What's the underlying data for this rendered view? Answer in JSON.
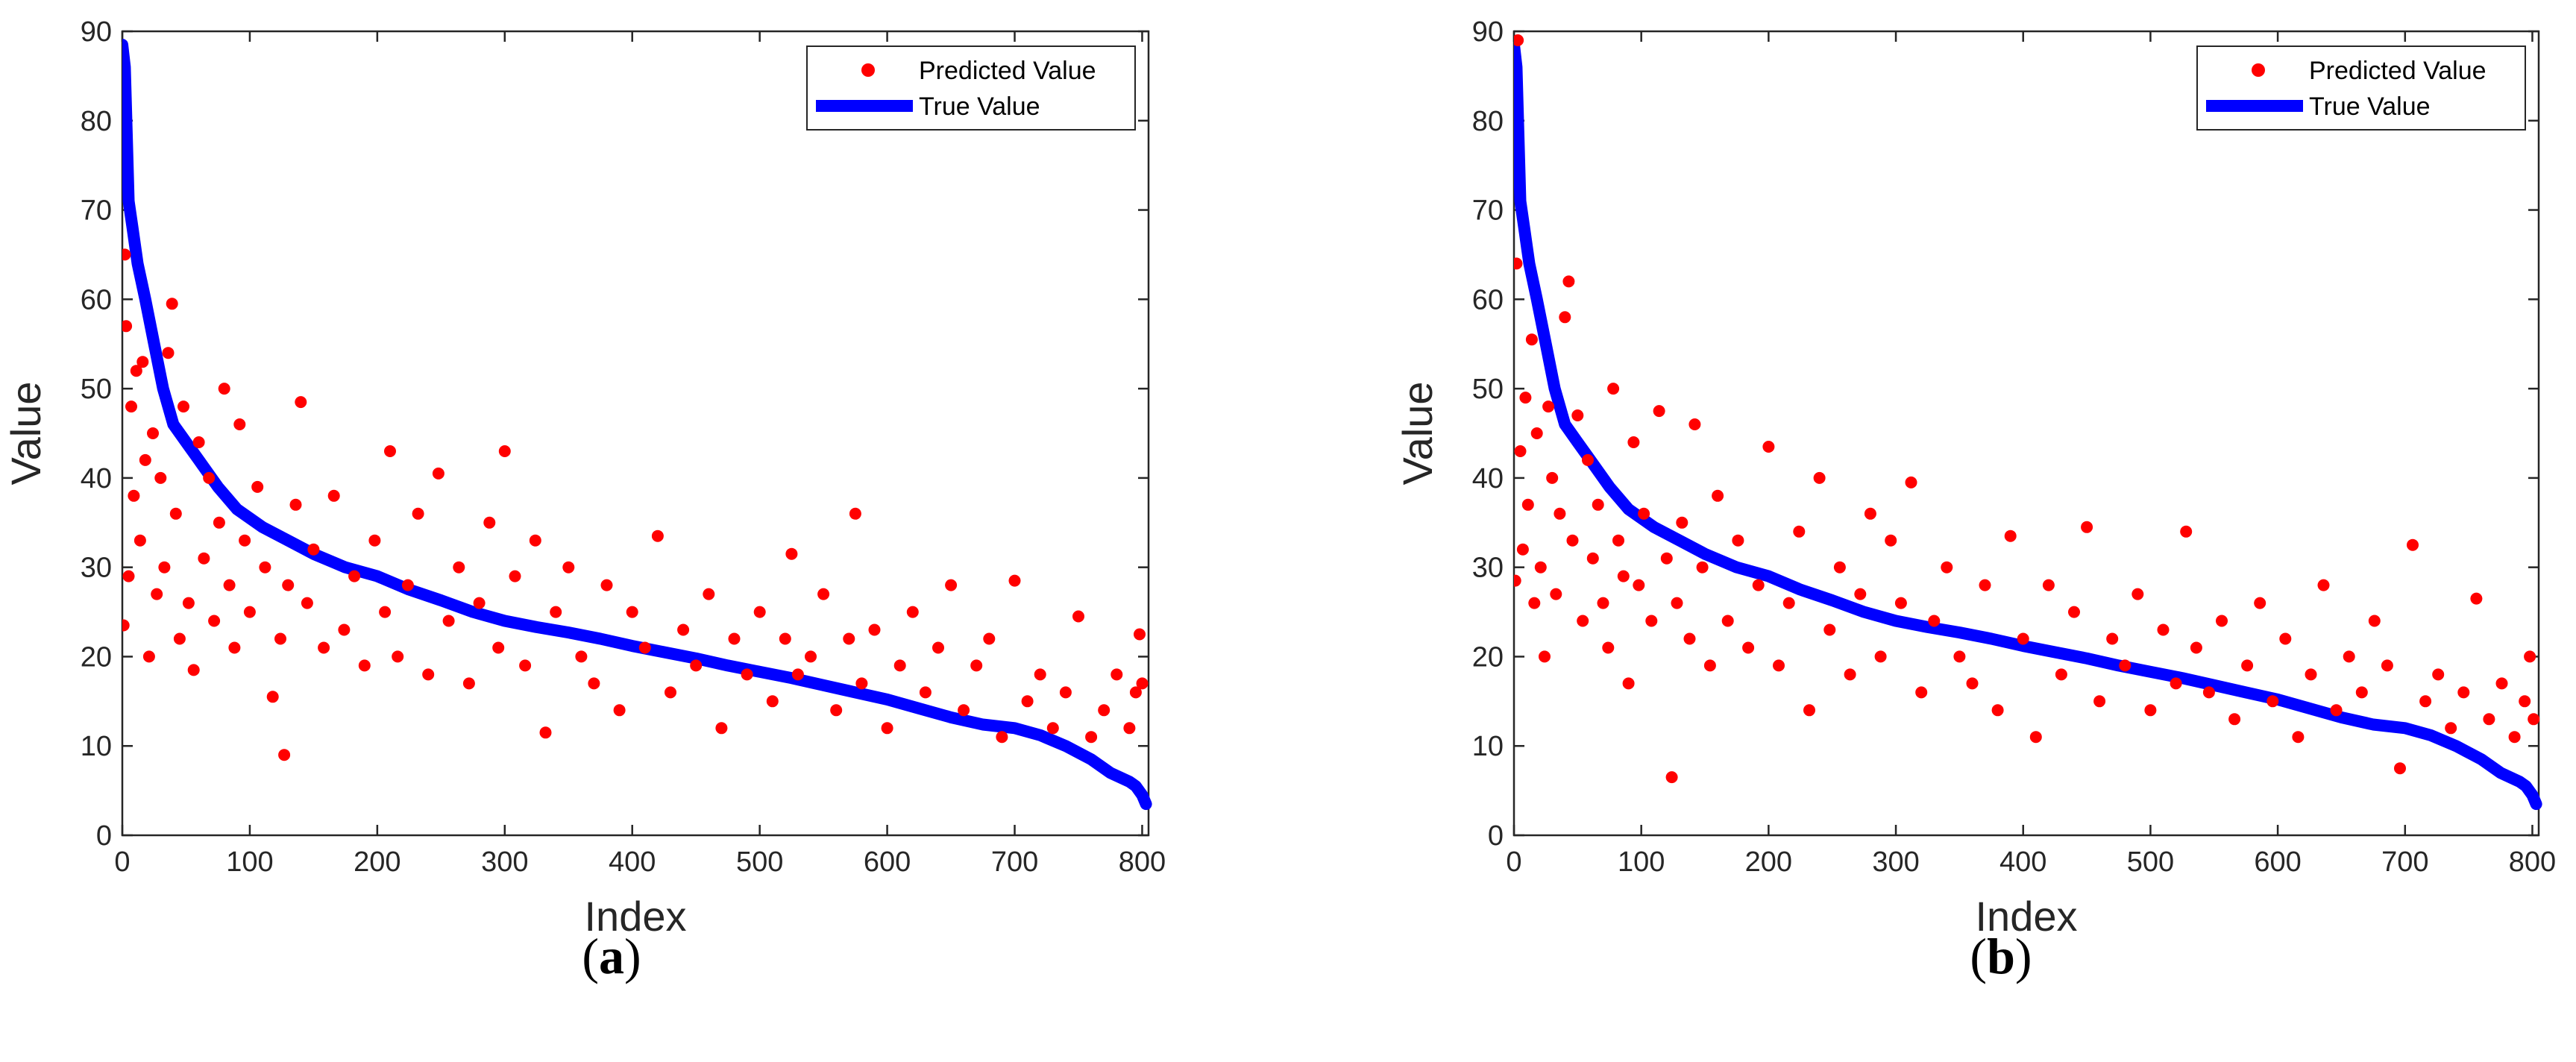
{
  "colors": {
    "predicted": "#ff0000",
    "true": "#0000ff",
    "axis": "#262626"
  },
  "chart_data": [
    {
      "type": "scatter",
      "panel_label": "a",
      "xlabel": "Index",
      "ylabel": "Value",
      "xlim": [
        0,
        805
      ],
      "ylim": [
        0,
        90
      ],
      "xticks": [
        0,
        100,
        200,
        300,
        400,
        500,
        600,
        700,
        800
      ],
      "yticks": [
        0,
        10,
        20,
        30,
        40,
        50,
        60,
        70,
        80,
        90
      ],
      "grid": false,
      "legend_position": "top-right",
      "legend": [
        "Predicted Value",
        "True Value"
      ],
      "series": [
        {
          "name": "True Value",
          "kind": "line",
          "x": [
            0,
            2,
            5,
            8,
            12,
            18,
            25,
            32,
            40,
            50,
            60,
            75,
            90,
            110,
            130,
            150,
            175,
            200,
            225,
            250,
            275,
            300,
            325,
            350,
            375,
            400,
            425,
            450,
            475,
            500,
            525,
            550,
            575,
            600,
            625,
            650,
            675,
            700,
            720,
            740,
            760,
            775,
            790,
            795,
            800,
            803
          ],
          "y": [
            88.5,
            86,
            71,
            68,
            64,
            60,
            55,
            50,
            46,
            44,
            42,
            39,
            36.5,
            34.5,
            33,
            31.5,
            30,
            29,
            27.5,
            26.3,
            25,
            24,
            23.3,
            22.7,
            22,
            21.2,
            20.5,
            19.8,
            19,
            18.3,
            17.6,
            16.8,
            16,
            15.2,
            14.2,
            13.2,
            12.4,
            12,
            11.2,
            10,
            8.5,
            7,
            6,
            5.5,
            4.5,
            3.5
          ]
        },
        {
          "name": "Predicted Value",
          "kind": "scatter",
          "x": [
            1,
            2,
            3,
            5,
            7,
            9,
            11,
            14,
            16,
            18,
            21,
            24,
            27,
            30,
            33,
            36,
            39,
            42,
            45,
            48,
            52,
            56,
            60,
            64,
            68,
            72,
            76,
            80,
            84,
            88,
            92,
            96,
            100,
            106,
            112,
            118,
            124,
            127,
            130,
            136,
            140,
            145,
            150,
            158,
            166,
            174,
            182,
            190,
            198,
            206,
            210,
            216,
            224,
            232,
            240,
            248,
            256,
            264,
            272,
            280,
            288,
            295,
            300,
            308,
            316,
            324,
            332,
            340,
            350,
            360,
            370,
            380,
            390,
            400,
            410,
            420,
            430,
            440,
            450,
            460,
            470,
            480,
            490,
            500,
            510,
            520,
            525,
            530,
            540,
            550,
            560,
            570,
            575,
            580,
            590,
            600,
            610,
            620,
            630,
            640,
            650,
            660,
            670,
            680,
            690,
            700,
            710,
            720,
            730,
            740,
            750,
            760,
            770,
            780,
            790,
            795,
            798,
            800
          ],
          "y": [
            23.5,
            65,
            57,
            29,
            48,
            38,
            52,
            33,
            53,
            42,
            20,
            45,
            27,
            40,
            30,
            54,
            59.5,
            36,
            22,
            48,
            26,
            18.5,
            44,
            31,
            40,
            24,
            35,
            50,
            28,
            21,
            46,
            33,
            25,
            39,
            30,
            15.5,
            22,
            9,
            28,
            37,
            48.5,
            26,
            32,
            21,
            38,
            23,
            29,
            19,
            33,
            25,
            43,
            20,
            28,
            36,
            18,
            40.5,
            24,
            30,
            17,
            26,
            35,
            21,
            43,
            29,
            19,
            33,
            11.5,
            25,
            30,
            20,
            17,
            28,
            14,
            25,
            21,
            33.5,
            16,
            23,
            19,
            27,
            12,
            22,
            18,
            25,
            15,
            22,
            31.5,
            18,
            20,
            27,
            14,
            22,
            36,
            17,
            23,
            12,
            19,
            25,
            16,
            21,
            28,
            14,
            19,
            22,
            11,
            28.5,
            15,
            18,
            12,
            16,
            24.5,
            11,
            14,
            18,
            12,
            16,
            22.5,
            17
          ]
        }
      ]
    },
    {
      "type": "scatter",
      "panel_label": "b",
      "xlabel": "Index",
      "ylabel": "Value",
      "xlim": [
        0,
        805
      ],
      "ylim": [
        0,
        90
      ],
      "xticks": [
        0,
        100,
        200,
        300,
        400,
        500,
        600,
        700,
        800
      ],
      "yticks": [
        0,
        10,
        20,
        30,
        40,
        50,
        60,
        70,
        80,
        90
      ],
      "grid": false,
      "legend_position": "top-right",
      "legend": [
        "Predicted Value",
        "True Value"
      ],
      "series": [
        {
          "name": "True Value",
          "kind": "line",
          "x": [
            0,
            2,
            5,
            8,
            12,
            18,
            25,
            32,
            40,
            50,
            60,
            75,
            90,
            110,
            130,
            150,
            175,
            200,
            225,
            250,
            275,
            300,
            325,
            350,
            375,
            400,
            425,
            450,
            475,
            500,
            525,
            550,
            575,
            600,
            625,
            650,
            675,
            700,
            720,
            740,
            760,
            775,
            790,
            795,
            800,
            803
          ],
          "y": [
            88.5,
            86,
            71,
            68,
            64,
            60,
            55,
            50,
            46,
            44,
            42,
            39,
            36.5,
            34.5,
            33,
            31.5,
            30,
            29,
            27.5,
            26.3,
            25,
            24,
            23.3,
            22.7,
            22,
            21.2,
            20.5,
            19.8,
            19,
            18.3,
            17.6,
            16.8,
            16,
            15.2,
            14.2,
            13.2,
            12.4,
            12,
            11.2,
            10,
            8.5,
            7,
            6,
            5.5,
            4.5,
            3.5
          ]
        },
        {
          "name": "Predicted Value",
          "kind": "scatter",
          "x": [
            1,
            2,
            3,
            5,
            7,
            9,
            11,
            14,
            16,
            18,
            21,
            24,
            27,
            30,
            33,
            36,
            40,
            43,
            46,
            50,
            54,
            58,
            62,
            66,
            70,
            74,
            78,
            82,
            86,
            90,
            94,
            98,
            102,
            108,
            114,
            120,
            124,
            128,
            132,
            138,
            142,
            148,
            154,
            160,
            168,
            176,
            184,
            192,
            200,
            208,
            216,
            224,
            232,
            240,
            248,
            256,
            264,
            272,
            280,
            288,
            296,
            304,
            312,
            320,
            330,
            340,
            350,
            360,
            370,
            380,
            390,
            400,
            410,
            420,
            430,
            440,
            450,
            460,
            470,
            480,
            490,
            500,
            510,
            520,
            528,
            536,
            546,
            556,
            566,
            576,
            586,
            596,
            606,
            616,
            626,
            636,
            646,
            656,
            666,
            676,
            686,
            696,
            706,
            716,
            726,
            736,
            746,
            756,
            766,
            776,
            786,
            794,
            798,
            801
          ],
          "y": [
            28.5,
            64,
            89,
            43,
            32,
            49,
            37,
            55.5,
            26,
            45,
            30,
            20,
            48,
            40,
            27,
            36,
            58,
            62,
            33,
            47,
            24,
            42,
            31,
            37,
            26,
            21,
            50,
            33,
            29,
            17,
            44,
            28,
            36,
            24,
            47.5,
            31,
            6.5,
            26,
            35,
            22,
            46,
            30,
            19,
            38,
            24,
            33,
            21,
            28,
            43.5,
            19,
            26,
            34,
            14,
            40,
            23,
            30,
            18,
            27,
            36,
            20,
            33,
            26,
            39.5,
            16,
            24,
            30,
            20,
            17,
            28,
            14,
            33.5,
            22,
            11,
            28,
            18,
            25,
            34.5,
            15,
            22,
            19,
            27,
            14,
            23,
            17,
            34,
            21,
            16,
            24,
            13,
            19,
            26,
            15,
            22,
            11,
            18,
            28,
            14,
            20,
            16,
            24,
            19,
            7.5,
            32.5,
            15,
            18,
            12,
            16,
            26.5,
            13,
            17,
            11,
            15,
            20,
            13
          ]
        }
      ]
    }
  ]
}
